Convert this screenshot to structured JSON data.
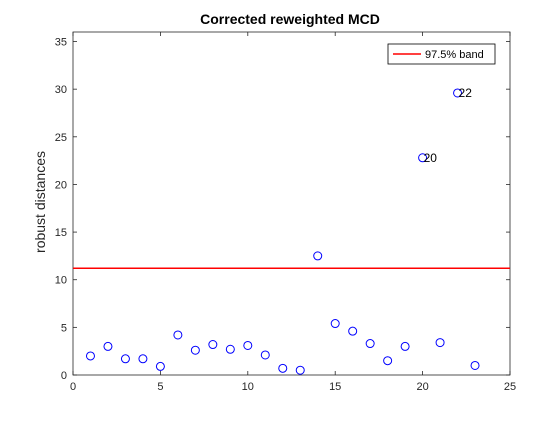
{
  "chart_data": {
    "type": "scatter",
    "title": "Corrected reweighted MCD",
    "xlabel": "",
    "ylabel": "robust distances",
    "xlim": [
      0,
      25
    ],
    "ylim": [
      0,
      36
    ],
    "xticks": [
      0,
      5,
      10,
      15,
      20,
      25
    ],
    "yticks": [
      0,
      5,
      10,
      15,
      20,
      25,
      30,
      35
    ],
    "grid": false,
    "legend_position": "top-right",
    "series": [
      {
        "marker": "open-circle",
        "color": "#0000ff",
        "x": [
          1,
          2,
          3,
          4,
          5,
          6,
          7,
          8,
          9,
          10,
          11,
          12,
          13,
          14,
          15,
          16,
          17,
          18,
          19,
          20,
          21,
          22,
          23
        ],
        "y": [
          2.0,
          3.0,
          1.7,
          1.7,
          0.9,
          4.2,
          2.6,
          3.2,
          2.7,
          3.1,
          2.1,
          0.7,
          0.5,
          12.5,
          5.4,
          4.6,
          3.3,
          1.5,
          3.0,
          22.8,
          3.4,
          29.6,
          1.0
        ]
      }
    ],
    "reference_lines": [
      {
        "name": "97.5% band",
        "y": 11.2,
        "color": "#ff0000"
      }
    ],
    "annotations": [
      {
        "text": "20",
        "x": 20,
        "y": 22.8
      },
      {
        "text": "22",
        "x": 22,
        "y": 29.6
      }
    ]
  }
}
